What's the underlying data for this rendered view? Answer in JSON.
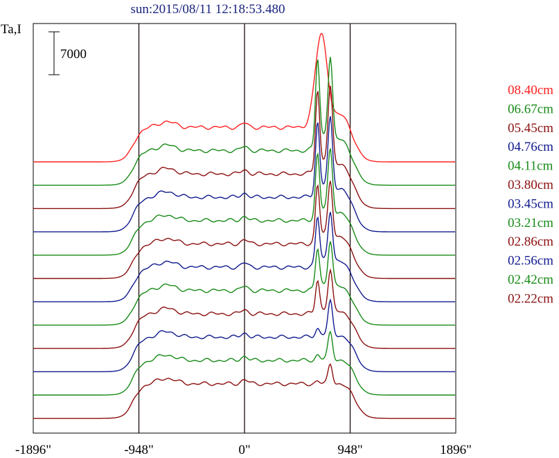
{
  "title": "sun:2015/08/11 12:18:53.480",
  "chart_data": {
    "type": "line",
    "title": "sun:2015/08/11 12:18:53.480",
    "ylabel": "Ta,I",
    "scale_bar_label": "7000",
    "x_unit": "arcsec",
    "xlim": [
      -1896,
      1896
    ],
    "x_ticks": [
      -1896,
      -948,
      0,
      948,
      1896
    ],
    "x_tick_labels": [
      "-1896\"",
      "-948\"",
      "0\"",
      "948\"",
      "1896\""
    ],
    "vertical_lines_x": [
      -948,
      0,
      948
    ],
    "legend_position": "right",
    "series": [
      {
        "name": "08.40cm",
        "color": "#ff2020"
      },
      {
        "name": "06.67cm",
        "color": "#168a16"
      },
      {
        "name": "05.45cm",
        "color": "#8b0f0f"
      },
      {
        "name": "04.76cm",
        "color": "#101a8e"
      },
      {
        "name": "04.11cm",
        "color": "#168a16"
      },
      {
        "name": "03.80cm",
        "color": "#8b0f0f"
      },
      {
        "name": "03.45cm",
        "color": "#101a8e"
      },
      {
        "name": "03.21cm",
        "color": "#168a16"
      },
      {
        "name": "02.86cm",
        "color": "#8b0f0f"
      },
      {
        "name": "02.56cm",
        "color": "#101a8e"
      },
      {
        "name": "02.42cm",
        "color": "#168a16"
      },
      {
        "name": "02.22cm",
        "color": "#8b0f0f"
      }
    ],
    "grid": false
  }
}
